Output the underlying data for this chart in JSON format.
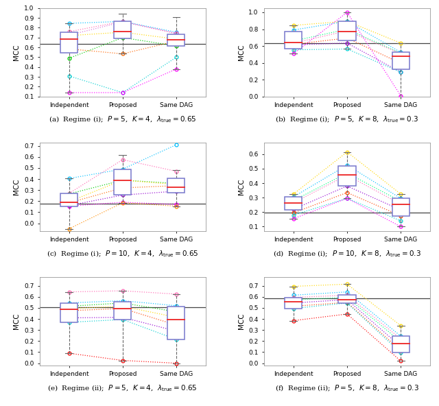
{
  "panels": [
    {
      "label": "(a)",
      "caption": "Regime (i);  $P = 5$,  $K = 4$,  $\\lambda_{\\mathrm{true}} = 0.65$",
      "hline": 0.635,
      "ylim": [
        0.1,
        1.0
      ],
      "yticks": [
        0.1,
        0.2,
        0.3,
        0.4,
        0.5,
        0.6,
        0.7,
        0.8,
        0.9,
        1.0
      ],
      "box_data": {
        "Independent": {
          "q1": 0.545,
          "median": 0.685,
          "q3": 0.755,
          "whislo": 0.14,
          "whishi": 0.845
        },
        "Proposed": {
          "q1": 0.69,
          "median": 0.765,
          "q3": 0.865,
          "whislo": 0.535,
          "whishi": 0.945
        },
        "Same DAG": {
          "q1": 0.615,
          "median": 0.675,
          "q3": 0.735,
          "whislo": 0.38,
          "whishi": 0.91
        }
      },
      "lines": [
        [
          0.845,
          0.865,
          0.755
        ],
        [
          0.76,
          0.865,
          0.74
        ],
        [
          0.725,
          0.86,
          0.745
        ],
        [
          0.72,
          0.755,
          0.685
        ],
        [
          0.585,
          0.535,
          0.665
        ],
        [
          0.49,
          0.7,
          0.615
        ],
        [
          0.31,
          0.14,
          0.5
        ],
        [
          0.14,
          0.14,
          0.38
        ]
      ],
      "line_colors": [
        "#00bfff",
        "#ff69b4",
        "#da70d6",
        "#ffd700",
        "#ff6600",
        "#00cc00",
        "#00ced1",
        "#ff00ff"
      ]
    },
    {
      "label": "(b)",
      "caption": "Regime (i);  $P = 5$,  $K = 8$,  $\\lambda_{\\mathrm{true}} = 0.3$",
      "hline": 0.635,
      "ylim": [
        0.0,
        1.05
      ],
      "yticks": [
        0.0,
        0.2,
        0.4,
        0.6,
        0.8,
        1.0
      ],
      "box_data": {
        "Independent": {
          "q1": 0.565,
          "median": 0.645,
          "q3": 0.775,
          "whislo": 0.51,
          "whishi": 0.845
        },
        "Proposed": {
          "q1": 0.665,
          "median": 0.775,
          "q3": 0.895,
          "whislo": 0.565,
          "whishi": 1.0
        },
        "Same DAG": {
          "q1": 0.325,
          "median": 0.475,
          "q3": 0.525,
          "whislo": 0.0,
          "whishi": 0.635
        }
      },
      "lines": [
        [
          0.845,
          0.895,
          0.635
        ],
        [
          0.79,
          0.895,
          0.525
        ],
        [
          0.66,
          0.8,
          0.515
        ],
        [
          0.635,
          0.78,
          0.51
        ],
        [
          0.62,
          0.695,
          0.395
        ],
        [
          0.615,
          0.635,
          0.29
        ],
        [
          0.555,
          0.565,
          0.29
        ],
        [
          0.51,
          1.0,
          0.01
        ]
      ],
      "line_colors": [
        "#ffd700",
        "#00bfff",
        "#00ff7f",
        "#ff69b4",
        "#ff4500",
        "#9400d3",
        "#00ced1",
        "#ff00ff"
      ]
    },
    {
      "label": "(c)",
      "caption": "Regime (i);  $P = 10$,  $K = 4$,  $\\lambda_{\\mathrm{true}} = 0.65$",
      "hline": 0.175,
      "ylim": [
        -0.07,
        0.73
      ],
      "yticks": [
        0.0,
        0.1,
        0.2,
        0.3,
        0.4,
        0.5,
        0.6,
        0.7
      ],
      "box_data": {
        "Independent": {
          "q1": 0.155,
          "median": 0.19,
          "q3": 0.27,
          "whislo": -0.05,
          "whishi": 0.405
        },
        "Proposed": {
          "q1": 0.255,
          "median": 0.39,
          "q3": 0.49,
          "whislo": 0.185,
          "whishi": 0.62
        },
        "Same DAG": {
          "q1": 0.275,
          "median": 0.325,
          "q3": 0.405,
          "whislo": 0.155,
          "whishi": 0.48
        }
      },
      "lines": [
        [
          0.405,
          0.49,
          0.71
        ],
        [
          0.27,
          0.575,
          0.47
        ],
        [
          0.265,
          0.39,
          0.36
        ],
        [
          0.195,
          0.39,
          0.35
        ],
        [
          0.185,
          0.32,
          0.34
        ],
        [
          0.16,
          0.255,
          0.29
        ],
        [
          0.155,
          0.19,
          0.17
        ],
        [
          -0.05,
          0.185,
          0.155
        ]
      ],
      "line_colors": [
        "#00bfff",
        "#ff69b4",
        "#00cc00",
        "#ffd700",
        "#ff6600",
        "#9400d3",
        "#ff00ff",
        "#ff8c00"
      ]
    },
    {
      "label": "(d)",
      "caption": "Regime (i);  $P = 10$,  $K = 8$,  $\\lambda_{\\mathrm{true}} = 0.3$",
      "hline": 0.195,
      "ylim": [
        0.07,
        0.68
      ],
      "yticks": [
        0.1,
        0.2,
        0.3,
        0.4,
        0.5,
        0.6
      ],
      "box_data": {
        "Independent": {
          "q1": 0.215,
          "median": 0.265,
          "q3": 0.305,
          "whislo": 0.155,
          "whishi": 0.325
        },
        "Proposed": {
          "q1": 0.38,
          "median": 0.455,
          "q3": 0.52,
          "whislo": 0.295,
          "whishi": 0.615
        },
        "Same DAG": {
          "q1": 0.175,
          "median": 0.255,
          "q3": 0.295,
          "whislo": 0.1,
          "whishi": 0.325
        }
      },
      "lines": [
        [
          0.325,
          0.615,
          0.325
        ],
        [
          0.305,
          0.525,
          0.295
        ],
        [
          0.28,
          0.47,
          0.275
        ],
        [
          0.265,
          0.455,
          0.255
        ],
        [
          0.22,
          0.38,
          0.215
        ],
        [
          0.195,
          0.335,
          0.175
        ],
        [
          0.18,
          0.295,
          0.14
        ],
        [
          0.155,
          0.295,
          0.1
        ]
      ],
      "line_colors": [
        "#ffd700",
        "#00bfff",
        "#00ff7f",
        "#ff69b4",
        "#9400d3",
        "#ff4500",
        "#00ced1",
        "#ff00ff"
      ]
    },
    {
      "label": "(e)",
      "caption": "Regime (ii);  $P = 5$,  $K = 4$,  $\\lambda_{\\mathrm{true}} = 0.65$",
      "hline": 0.505,
      "ylim": [
        -0.02,
        0.78
      ],
      "yticks": [
        0.0,
        0.1,
        0.2,
        0.3,
        0.4,
        0.5,
        0.6,
        0.7
      ],
      "box_data": {
        "Independent": {
          "q1": 0.37,
          "median": 0.49,
          "q3": 0.545,
          "whislo": 0.09,
          "whishi": 0.645
        },
        "Proposed": {
          "q1": 0.395,
          "median": 0.495,
          "q3": 0.555,
          "whislo": 0.025,
          "whishi": 0.655
        },
        "Same DAG": {
          "q1": 0.215,
          "median": 0.395,
          "q3": 0.515,
          "whislo": 0.0,
          "whishi": 0.625
        }
      },
      "lines": [
        [
          0.645,
          0.655,
          0.625
        ],
        [
          0.545,
          0.565,
          0.52
        ],
        [
          0.515,
          0.545,
          0.465
        ],
        [
          0.495,
          0.515,
          0.415
        ],
        [
          0.475,
          0.495,
          0.345
        ],
        [
          0.41,
          0.415,
          0.29
        ],
        [
          0.37,
          0.395,
          0.215
        ],
        [
          0.09,
          0.025,
          0.0
        ]
      ],
      "line_colors": [
        "#ff69b4",
        "#00bfff",
        "#00cc00",
        "#ffd700",
        "#ff4500",
        "#9400d3",
        "#00ced1",
        "#ff0000"
      ]
    },
    {
      "label": "(f)",
      "caption": "Regime (ii);  $P = 5$,  $K = 8$,  $\\lambda_{\\mathrm{true}} = 0.3$",
      "hline": 0.585,
      "ylim": [
        -0.02,
        0.78
      ],
      "yticks": [
        0.0,
        0.1,
        0.2,
        0.3,
        0.4,
        0.5,
        0.6,
        0.7
      ],
      "box_data": {
        "Independent": {
          "q1": 0.495,
          "median": 0.555,
          "q3": 0.595,
          "whislo": 0.385,
          "whishi": 0.695
        },
        "Proposed": {
          "q1": 0.545,
          "median": 0.575,
          "q3": 0.615,
          "whislo": 0.445,
          "whishi": 0.715
        },
        "Same DAG": {
          "q1": 0.095,
          "median": 0.175,
          "q3": 0.245,
          "whislo": 0.02,
          "whishi": 0.34
        }
      },
      "lines": [
        [
          0.695,
          0.715,
          0.34
        ],
        [
          0.615,
          0.645,
          0.245
        ],
        [
          0.595,
          0.615,
          0.22
        ],
        [
          0.575,
          0.595,
          0.195
        ],
        [
          0.545,
          0.575,
          0.15
        ],
        [
          0.515,
          0.55,
          0.115
        ],
        [
          0.495,
          0.545,
          0.095
        ],
        [
          0.385,
          0.445,
          0.02
        ]
      ],
      "line_colors": [
        "#ffd700",
        "#00bfff",
        "#ff69b4",
        "#00ff7f",
        "#9400d3",
        "#ff4500",
        "#00ced1",
        "#ff0000"
      ]
    }
  ],
  "x_positions": [
    0,
    1,
    2
  ],
  "x_labels": [
    "Independent",
    "Proposed",
    "Same DAG"
  ],
  "box_color": "#7777cc",
  "median_color": "#ee3333",
  "whisker_color": "#666666",
  "hline_color": "#444444",
  "fig_width": 6.4,
  "fig_height": 5.92
}
